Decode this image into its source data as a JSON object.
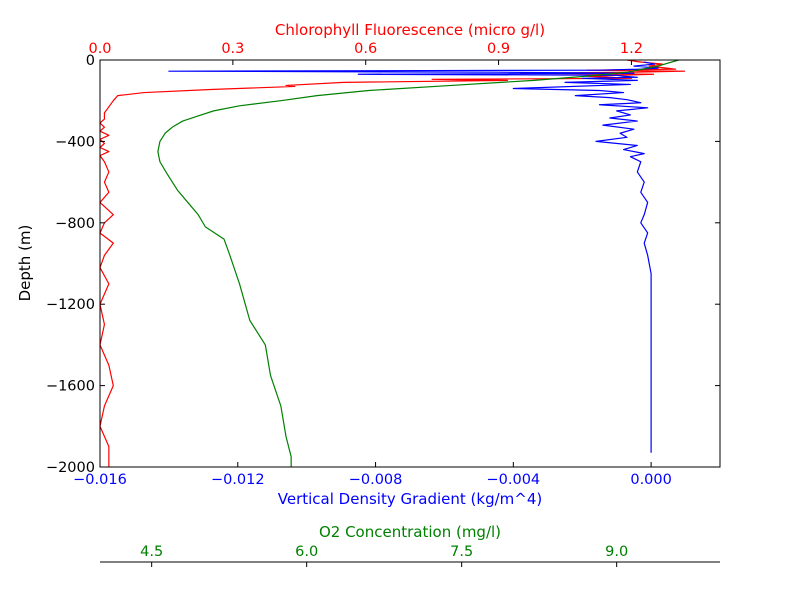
{
  "chart_data": {
    "type": "line",
    "grid": false,
    "axes": {
      "bottom": {
        "label": "Vertical Density Gradient (kg/m^4)",
        "color": "#0000ff",
        "range": [
          -0.016,
          0.002
        ],
        "ticks": [
          -0.016,
          -0.012,
          -0.008,
          -0.004,
          0.0
        ],
        "tick_labels": [
          "−0.016",
          "−0.012",
          "−0.008",
          "−0.004",
          "0.000"
        ]
      },
      "top": {
        "label": "Chlorophyll Fluorescence (micro g/l)",
        "color": "#ff0000",
        "range": [
          0.0,
          1.4
        ],
        "ticks": [
          0.0,
          0.3,
          0.6,
          0.9,
          1.2
        ],
        "tick_labels": [
          "0.0",
          "0.3",
          "0.6",
          "0.9",
          "1.2"
        ]
      },
      "left": {
        "label": "Depth (m)",
        "color": "#000000",
        "range": [
          -2000,
          0
        ],
        "ticks": [
          0,
          -400,
          -800,
          -1200,
          -1600,
          -2000
        ],
        "tick_labels": [
          "0",
          "−400",
          "−800",
          "−1200",
          "−1600",
          "−2000"
        ]
      },
      "offset_bottom": {
        "label": "O2 Concentration (mg/l)",
        "color": "#008000",
        "range": [
          4.0,
          10.0
        ],
        "ticks": [
          4.5,
          6.0,
          7.5,
          9.0
        ],
        "tick_labels": [
          "4.5",
          "6.0",
          "7.5",
          "9.0"
        ]
      }
    },
    "series": [
      {
        "color": "#ff0000",
        "x_axis": "top",
        "points": [
          [
            1.19,
            0
          ],
          [
            1.22,
            -10
          ],
          [
            1.27,
            -20
          ],
          [
            1.24,
            -30
          ],
          [
            1.28,
            -40
          ],
          [
            1.3,
            -45
          ],
          [
            1.1,
            -50
          ],
          [
            1.32,
            -55
          ],
          [
            1.2,
            -60
          ],
          [
            0.95,
            -65
          ],
          [
            1.25,
            -70
          ],
          [
            1.1,
            -80
          ],
          [
            1.2,
            -90
          ],
          [
            0.75,
            -95
          ],
          [
            0.92,
            -100
          ],
          [
            0.55,
            -110
          ],
          [
            0.42,
            -125
          ],
          [
            0.44,
            -130
          ],
          [
            0.25,
            -145
          ],
          [
            0.1,
            -160
          ],
          [
            0.04,
            -175
          ],
          [
            0.03,
            -200
          ],
          [
            0.02,
            -230
          ],
          [
            0.01,
            -260
          ],
          [
            0.01,
            -290
          ],
          [
            0.0,
            -310
          ],
          [
            0.01,
            -330
          ],
          [
            0.0,
            -350
          ],
          [
            0.02,
            -370
          ],
          [
            0.0,
            -390
          ],
          [
            0.01,
            -410
          ],
          [
            0.0,
            -430
          ],
          [
            0.02,
            -450
          ],
          [
            0.0,
            -470
          ],
          [
            0.01,
            -500
          ],
          [
            0.02,
            -550
          ],
          [
            0.01,
            -600
          ],
          [
            0.02,
            -650
          ],
          [
            0.0,
            -700
          ],
          [
            0.03,
            -760
          ],
          [
            0.01,
            -800
          ],
          [
            0.0,
            -850
          ],
          [
            0.03,
            -900
          ],
          [
            0.01,
            -960
          ],
          [
            0.0,
            -1020
          ],
          [
            0.02,
            -1100
          ],
          [
            0.0,
            -1200
          ],
          [
            0.01,
            -1300
          ],
          [
            0.0,
            -1400
          ],
          [
            0.02,
            -1500
          ],
          [
            0.03,
            -1600
          ],
          [
            0.01,
            -1700
          ],
          [
            0.0,
            -1800
          ],
          [
            0.02,
            -1900
          ],
          [
            0.02,
            -2000
          ]
        ]
      },
      {
        "color": "#0000ff",
        "x_axis": "bottom",
        "points": [
          [
            -0.0002,
            -10
          ],
          [
            0.0001,
            -20
          ],
          [
            -0.0005,
            -30
          ],
          [
            0.0002,
            -40
          ],
          [
            -0.0003,
            -45
          ],
          [
            -0.0015,
            -50
          ],
          [
            -0.014,
            -55
          ],
          [
            -0.0045,
            -60
          ],
          [
            -0.0005,
            -65
          ],
          [
            -0.0085,
            -70
          ],
          [
            -0.001,
            -75
          ],
          [
            -0.0008,
            -80
          ],
          [
            -0.0004,
            -85
          ],
          [
            -0.002,
            -90
          ],
          [
            -0.0004,
            -100
          ],
          [
            -0.0025,
            -110
          ],
          [
            -0.0006,
            -120
          ],
          [
            -0.004,
            -140
          ],
          [
            -0.0015,
            -150
          ],
          [
            -0.0008,
            -160
          ],
          [
            -0.0022,
            -175
          ],
          [
            -0.0012,
            -185
          ],
          [
            -0.0007,
            -195
          ],
          [
            -0.0003,
            -210
          ],
          [
            -0.0015,
            -220
          ],
          [
            -0.0001,
            -235
          ],
          [
            -0.001,
            -250
          ],
          [
            -0.0006,
            -270
          ],
          [
            -0.0012,
            -285
          ],
          [
            -0.0004,
            -300
          ],
          [
            -0.0014,
            -320
          ],
          [
            -0.0005,
            -340
          ],
          [
            -0.0009,
            -360
          ],
          [
            -0.0007,
            -380
          ],
          [
            -0.0016,
            -400
          ],
          [
            -0.0004,
            -420
          ],
          [
            -0.0008,
            -440
          ],
          [
            -0.0002,
            -460
          ],
          [
            -0.0006,
            -475
          ],
          [
            -0.0003,
            -500
          ],
          [
            -0.0004,
            -550
          ],
          [
            -0.0002,
            -600
          ],
          [
            -0.0003,
            -650
          ],
          [
            -0.0001,
            -700
          ],
          [
            -0.0002,
            -760
          ],
          [
            -0.0003,
            -800
          ],
          [
            -0.0001,
            -850
          ],
          [
            -0.0002,
            -900
          ],
          [
            -0.0001,
            -960
          ],
          [
            0.0,
            -1050
          ],
          [
            0.0,
            -1200
          ],
          [
            0.0,
            -1400
          ],
          [
            0.0,
            -1600
          ],
          [
            0.0,
            -1800
          ],
          [
            0.0,
            -1930
          ]
        ]
      },
      {
        "color": "#008000",
        "x_axis": "offset_bottom",
        "points": [
          [
            9.6,
            0
          ],
          [
            9.4,
            -30
          ],
          [
            9.1,
            -60
          ],
          [
            8.7,
            -80
          ],
          [
            8.2,
            -100
          ],
          [
            7.4,
            -125
          ],
          [
            6.6,
            -150
          ],
          [
            6.1,
            -175
          ],
          [
            5.75,
            -200
          ],
          [
            5.35,
            -225
          ],
          [
            5.1,
            -250
          ],
          [
            4.95,
            -275
          ],
          [
            4.8,
            -300
          ],
          [
            4.7,
            -330
          ],
          [
            4.63,
            -360
          ],
          [
            4.58,
            -400
          ],
          [
            4.56,
            -450
          ],
          [
            4.58,
            -500
          ],
          [
            4.65,
            -560
          ],
          [
            4.75,
            -640
          ],
          [
            4.85,
            -700
          ],
          [
            4.95,
            -760
          ],
          [
            5.02,
            -820
          ],
          [
            5.2,
            -880
          ],
          [
            5.25,
            -950
          ],
          [
            5.35,
            -1100
          ],
          [
            5.45,
            -1280
          ],
          [
            5.6,
            -1400
          ],
          [
            5.65,
            -1550
          ],
          [
            5.75,
            -1700
          ],
          [
            5.8,
            -1850
          ],
          [
            5.85,
            -1950
          ],
          [
            5.85,
            -2000
          ]
        ]
      }
    ]
  }
}
